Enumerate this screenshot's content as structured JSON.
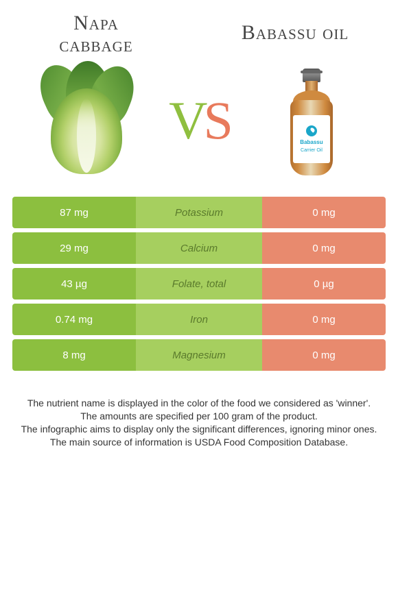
{
  "title_left_line1": "Napa",
  "title_left_line2": "cabbage",
  "title_right": "Babassu oil",
  "vs_v": "V",
  "vs_s": "S",
  "bottle_label_line1": "Babassu",
  "bottle_label_line2": "Carrier Oil",
  "colors": {
    "left_cell": "#8cbf3f",
    "mid_cell": "#a6cf5f",
    "right_cell": "#e88a6e",
    "nutrient_text": "#5a7a2c"
  },
  "rows": [
    {
      "left": "87 mg",
      "nutrient": "Potassium",
      "right": "0 mg"
    },
    {
      "left": "29 mg",
      "nutrient": "Calcium",
      "right": "0 mg"
    },
    {
      "left": "43 µg",
      "nutrient": "Folate, total",
      "right": "0 µg"
    },
    {
      "left": "0.74 mg",
      "nutrient": "Iron",
      "right": "0 mg"
    },
    {
      "left": "8 mg",
      "nutrient": "Magnesium",
      "right": "0 mg"
    }
  ],
  "footer_lines": [
    "The nutrient name is displayed in the color of the food we considered as 'winner'.",
    "The amounts are specified per 100 gram of the product.",
    "The infographic aims to display only the significant differences, ignoring minor ones.",
    "The main source of information is USDA Food Composition Database."
  ]
}
